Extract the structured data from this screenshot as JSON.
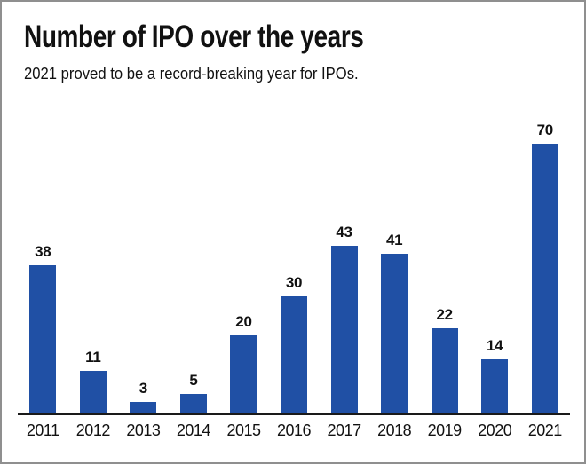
{
  "header": {
    "title": "Number of IPO over the years",
    "subtitle": "2021 proved to be a record-breaking year for IPOs."
  },
  "colors": {
    "bar": "#2050A5",
    "axis": "#1a1a1a",
    "text": "#111111",
    "frame_border": "#8f8f8f",
    "background": "#ffffff"
  },
  "chart_data": {
    "type": "bar",
    "categories": [
      "2011",
      "2012",
      "2013",
      "2014",
      "2015",
      "2016",
      "2017",
      "2018",
      "2019",
      "2020",
      "2021"
    ],
    "values": [
      38,
      11,
      3,
      5,
      20,
      30,
      43,
      41,
      22,
      14,
      70
    ],
    "title": "Number of IPO over the years",
    "subtitle": "2021 proved to be a record-breaking year for IPOs.",
    "xlabel": "",
    "ylabel": "",
    "ylim": [
      0,
      70
    ],
    "bar_color": "#2050A5",
    "value_labels": true,
    "grid": false,
    "legend": false,
    "y_axis_visible": false,
    "x_axis_visible": true
  }
}
